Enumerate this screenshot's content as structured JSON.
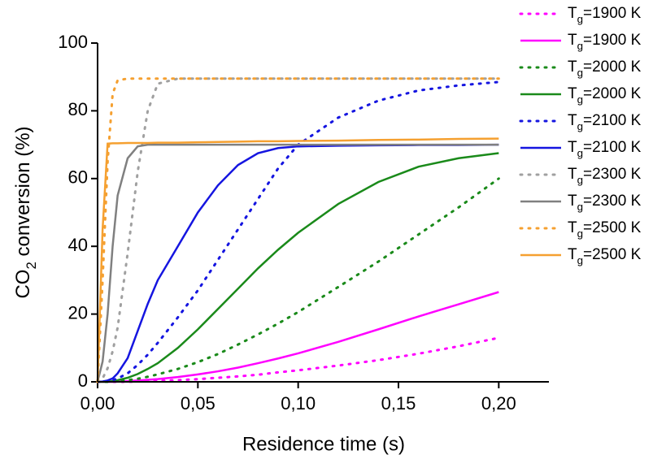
{
  "chart_data": {
    "type": "line",
    "xlabel": "Residence time (s)",
    "ylabel": "CO2 conversion (%)",
    "x": [
      0,
      0.0025,
      0.005,
      0.0075,
      0.01,
      0.015,
      0.02,
      0.025,
      0.03,
      0.04,
      0.05,
      0.06,
      0.07,
      0.08,
      0.09,
      0.1,
      0.12,
      0.14,
      0.16,
      0.18,
      0.2
    ],
    "xlim": [
      0,
      0.225
    ],
    "xticks": [
      {
        "value": 0,
        "label": "0,00"
      },
      {
        "value": 0.05,
        "label": "0,05"
      },
      {
        "value": 0.1,
        "label": "0,10"
      },
      {
        "value": 0.15,
        "label": "0,15"
      },
      {
        "value": 0.2,
        "label": "0,20"
      }
    ],
    "ylim": [
      0,
      100
    ],
    "yticks": [
      0,
      20,
      40,
      60,
      80,
      100
    ],
    "series": [
      {
        "name": "Tg=1900 K",
        "color": "#ff00ff",
        "style": "dotted",
        "values": [
          0,
          0,
          0,
          0,
          0,
          0,
          0.1,
          0.2,
          0.3,
          0.5,
          0.8,
          1.2,
          1.6,
          2.1,
          2.8,
          3.4,
          4.8,
          6.4,
          8.3,
          10.5,
          13
        ]
      },
      {
        "name": "Tg=1900 K",
        "color": "#ff00ff",
        "style": "solid",
        "values": [
          0,
          0,
          0,
          0,
          0.1,
          0.2,
          0.4,
          0.6,
          0.8,
          1.4,
          2.2,
          3.1,
          4.2,
          5.5,
          6.9,
          8.4,
          11.8,
          15.5,
          19.3,
          22.9,
          26.5
        ]
      },
      {
        "name": "Tg=2000 K",
        "color": "#1a8a1a",
        "style": "dotted",
        "values": [
          0,
          0,
          0,
          0.1,
          0.2,
          0.5,
          0.9,
          1.5,
          2.2,
          3.8,
          5.8,
          8.2,
          11,
          14,
          17.2,
          20.6,
          28,
          35.5,
          43.5,
          51.5,
          60
        ]
      },
      {
        "name": "Tg=2000 K",
        "color": "#1a8a1a",
        "style": "solid",
        "values": [
          0,
          0,
          0,
          0.2,
          0.5,
          1.2,
          2.3,
          3.8,
          5.5,
          10,
          15.5,
          21.5,
          27.5,
          33.5,
          39,
          44,
          52.5,
          59,
          63.5,
          66,
          67.5
        ]
      },
      {
        "name": "Tg=2100 K",
        "color": "#1515e0",
        "style": "dotted",
        "values": [
          0,
          0,
          0.2,
          0.5,
          1,
          2.5,
          5,
          8,
          11.5,
          19,
          27,
          36,
          45,
          54,
          63,
          70,
          78,
          83,
          86,
          87.5,
          88.5
        ]
      },
      {
        "name": "Tg=2100 K",
        "color": "#1515e0",
        "style": "solid",
        "values": [
          0,
          0.1,
          0.4,
          1,
          2.5,
          7,
          15,
          23,
          30,
          40,
          50,
          58,
          64,
          67.5,
          69,
          69.5,
          69.7,
          69.8,
          69.9,
          69.9,
          70
        ]
      },
      {
        "name": "Tg=2300 K",
        "color": "#a0a0a0",
        "style": "dotted",
        "values": [
          0,
          1,
          4,
          9,
          16,
          38,
          62,
          80,
          88,
          89.5,
          89.5,
          89.5,
          89.5,
          89.5,
          89.5,
          89.5,
          89.5,
          89.5,
          89.5,
          89.5,
          89.5
        ]
      },
      {
        "name": "Tg=2300 K",
        "color": "#808080",
        "style": "solid",
        "values": [
          0,
          6,
          20,
          40,
          55,
          66,
          69.5,
          70,
          70,
          70,
          70,
          70,
          70,
          70,
          70,
          70,
          70,
          70,
          70,
          70,
          70
        ]
      },
      {
        "name": "Tg=2500 K",
        "color": "#f5a030",
        "style": "dotted",
        "values": [
          0,
          30,
          65,
          85,
          89,
          89.5,
          89.5,
          89.5,
          89.5,
          89.5,
          89.5,
          89.5,
          89.5,
          89.5,
          89.5,
          89.5,
          89.5,
          89.5,
          89.5,
          89.5,
          89.5
        ]
      },
      {
        "name": "Tg=2500 K",
        "color": "#f5a030",
        "style": "solid",
        "values": [
          0,
          45,
          70.3,
          70.4,
          70.4,
          70.5,
          70.5,
          70.5,
          70.6,
          70.6,
          70.7,
          70.8,
          70.9,
          71,
          71,
          71.1,
          71.2,
          71.4,
          71.5,
          71.7,
          71.8
        ]
      }
    ]
  }
}
